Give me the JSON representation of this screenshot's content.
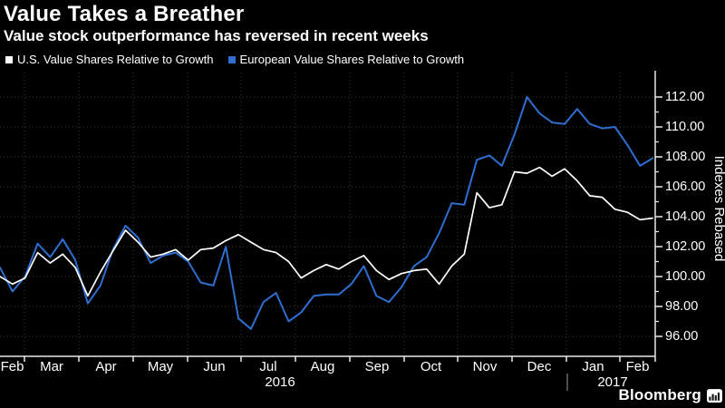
{
  "header": {
    "title": "Value Takes a Breather",
    "subtitle": "Value stock outperformance has reversed in recent weeks"
  },
  "legend": {
    "items": [
      {
        "label": "U.S. Value Shares Relative to Growth",
        "color": "#ffffff"
      },
      {
        "label": "European Value Shares Relative to Growth",
        "color": "#2e6ed0"
      }
    ]
  },
  "branding": {
    "name": "Bloomberg",
    "icon": "bar-chart-icon"
  },
  "colors": {
    "background": "#000000",
    "grid": "#3b3b3b",
    "axis": "#e8e8e8",
    "text": "#ffffff",
    "year_divider": "#9a9a9a"
  },
  "chart_data": {
    "type": "line",
    "title": "Value Takes a Breather",
    "subtitle": "Value stock outperformance has reversed in recent weeks",
    "xlabel": "",
    "ylabel": "Indexes Rebased",
    "x_unit": "weekly, Feb 2016 - Feb 2017",
    "grid": true,
    "legend_position": "top-left",
    "ylim": [
      94.7,
      113.9
    ],
    "y_ticks": [
      96,
      98,
      100,
      102,
      104,
      106,
      108,
      110,
      112
    ],
    "y_tick_labels": [
      "96.00",
      "98.00",
      "100.00",
      "102.00",
      "104.00",
      "106.00",
      "108.00",
      "110.00",
      "112.00"
    ],
    "x_months": [
      "Feb",
      "Mar",
      "Apr",
      "May",
      "Jun",
      "Jul",
      "Aug",
      "Sep",
      "Oct",
      "Nov",
      "Dec",
      "Jan",
      "Feb"
    ],
    "x_years": [
      {
        "label": "2016"
      },
      {
        "label": "2017"
      }
    ],
    "series": [
      {
        "name": "U.S. Value Shares Relative to Growth",
        "color": "#ffffff",
        "values": [
          100.0,
          99.5,
          99.9,
          101.6,
          100.9,
          101.5,
          100.6,
          98.7,
          100.3,
          101.7,
          103.1,
          102.3,
          101.3,
          101.5,
          101.8,
          101.1,
          101.8,
          101.9,
          102.4,
          102.8,
          102.3,
          101.8,
          101.6,
          101.0,
          99.9,
          100.4,
          100.8,
          100.5,
          101.0,
          101.4,
          100.4,
          99.8,
          100.2,
          100.4,
          100.5,
          99.5,
          100.7,
          101.5,
          105.6,
          104.6,
          104.8,
          107.0,
          106.9,
          107.3,
          106.7,
          107.2,
          106.4,
          105.4,
          105.3,
          104.5,
          104.3,
          103.8,
          103.9
        ]
      },
      {
        "name": "European Value Shares Relative to Growth",
        "color": "#2e6ed0",
        "values": [
          100.6,
          99.0,
          100.0,
          102.2,
          101.3,
          102.5,
          101.1,
          98.2,
          99.4,
          101.8,
          103.4,
          102.6,
          100.9,
          101.4,
          101.6,
          101.0,
          99.6,
          99.4,
          102.0,
          97.2,
          96.5,
          98.3,
          98.9,
          97.0,
          97.6,
          98.7,
          98.8,
          98.8,
          99.5,
          100.7,
          98.7,
          98.3,
          99.3,
          100.7,
          101.3,
          102.9,
          104.9,
          104.8,
          107.8,
          108.1,
          107.4,
          109.5,
          112.0,
          110.9,
          110.3,
          110.2,
          111.2,
          110.2,
          109.9,
          110.0,
          108.8,
          107.4,
          107.9
        ]
      }
    ]
  }
}
